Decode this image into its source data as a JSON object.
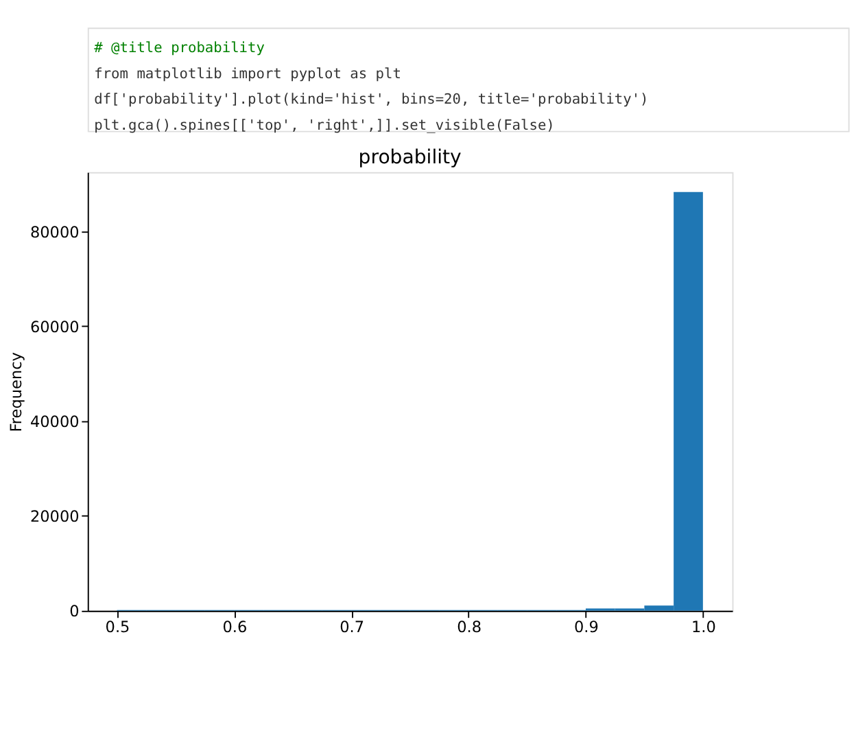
{
  "chart_data": {
    "type": "histogram",
    "title": "probability",
    "ylabel": "Frequency",
    "annotations": [
      "# @title probability",
      "from matplotlib import pyplot as plt",
      "df['probability'].plot(kind='hist', bins=20, title='probability')",
      "plt.gca().spines[['top', 'right',]].set_visible(False)"
    ],
    "bins": [
      0.5,
      0.525,
      0.55,
      0.575,
      0.6,
      0.625,
      0.65,
      0.675,
      0.7,
      0.725,
      0.75,
      0.775,
      0.8,
      0.825,
      0.85,
      0.875,
      0.9,
      0.925,
      0.95,
      0.975,
      1.0
    ],
    "values": [
      150,
      150,
      150,
      150,
      150,
      150,
      150,
      150,
      150,
      150,
      150,
      150,
      150,
      150,
      150,
      150,
      500,
      500,
      1100,
      88300
    ],
    "color": "#1f77b4",
    "xlim": [
      0.475,
      1.025
    ],
    "xticks": [
      {
        "value": 0.5,
        "label": "0.5"
      },
      {
        "value": 0.6,
        "label": "0.6"
      },
      {
        "value": 0.7,
        "label": "0.7"
      },
      {
        "value": 0.8,
        "label": "0.8"
      },
      {
        "value": 0.9,
        "label": "0.9"
      },
      {
        "value": 1.0,
        "label": "1.0"
      }
    ],
    "ylim": [
      0,
      92500
    ],
    "yticks": [
      0,
      20000,
      40000,
      60000,
      80000
    ],
    "grid": false
  }
}
